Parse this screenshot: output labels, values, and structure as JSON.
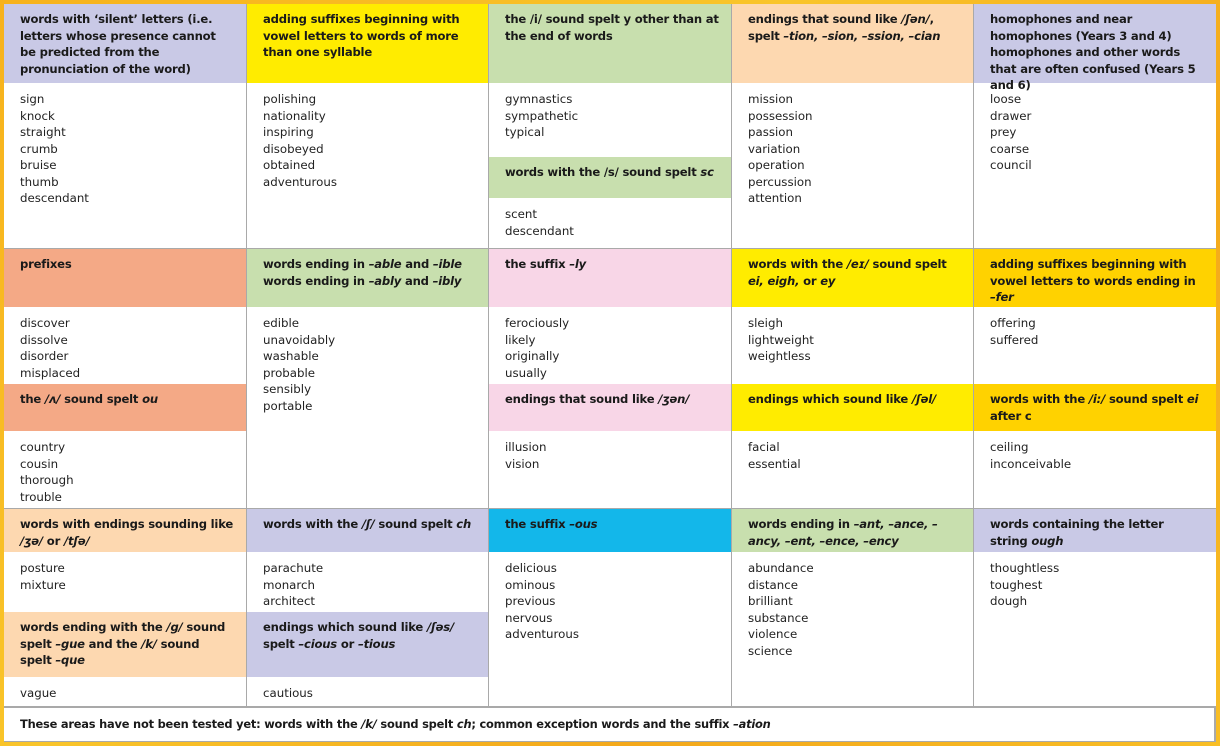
{
  "colors": {
    "lavender": "#c9c9e6",
    "yellow": "#ffec00",
    "green": "#c8dfae",
    "peach": "#fdd8b0",
    "salmon": "#f4a986",
    "pink": "#f8d6e7",
    "cyan": "#13b7ea",
    "gold": "#ffd200",
    "frame": "#f7b21c"
  },
  "rows": [
    [
      [
        {
          "color": "lavender",
          "header": [
            {
              "text": "words with ‘silent’ letters (i.e. letters whose presence cannot be predicted from the pronunciation of the word)"
            }
          ],
          "words": [
            "sign",
            "knock",
            "straight",
            "crumb",
            "bruise",
            "thumb",
            "descendant"
          ]
        }
      ],
      [
        {
          "color": "yellow",
          "header": [
            {
              "text": "adding suffixes beginning with vowel letters to words of more than one syllable"
            }
          ],
          "words": [
            "polishing",
            "nationality",
            "inspiring",
            "disobeyed",
            "obtained",
            "adventurous"
          ]
        }
      ],
      [
        {
          "color": "green",
          "header": [
            {
              "text": "the /i/ sound spelt y other than at the end of words"
            }
          ],
          "words": [
            "gymnastics",
            "sympathetic",
            "typical"
          ]
        },
        {
          "color": "green",
          "header": [
            {
              "text": "words with the /s/ sound spelt "
            },
            {
              "text": "sc",
              "italic": true
            }
          ],
          "words": [
            "scent",
            "descendant"
          ]
        }
      ],
      [
        {
          "color": "peach",
          "header": [
            {
              "text": "endings that sound like "
            },
            {
              "text": "/ʃən/",
              "italic": true
            },
            {
              "text": ", spelt "
            },
            {
              "text": "–tion, –sion, –ssion, –cian",
              "italic": true
            }
          ],
          "words": [
            "mission",
            "possession",
            "passion",
            "variation",
            "operation",
            "percussion",
            "attention"
          ]
        }
      ],
      [
        {
          "color": "lavender",
          "header": [
            {
              "text": "homophones and near homophones (Years 3 and 4) homophones and other words that are often confused (Years 5 and 6)"
            }
          ],
          "words": [
            "loose",
            "drawer",
            "prey",
            "coarse",
            "council"
          ]
        }
      ]
    ],
    [
      [
        {
          "color": "salmon",
          "header": [
            {
              "text": "prefixes"
            }
          ],
          "words": [
            "discover",
            "dissolve",
            "disorder",
            "misplaced"
          ]
        },
        {
          "color": "salmon",
          "header": [
            {
              "text": "the "
            },
            {
              "text": "/ʌ/",
              "italic": true
            },
            {
              "text": " sound spelt "
            },
            {
              "text": "ou",
              "italic": true
            }
          ],
          "words": [
            "country",
            "cousin",
            "thorough",
            "trouble"
          ]
        }
      ],
      [
        {
          "color": "green",
          "header": [
            {
              "text": "words ending in "
            },
            {
              "text": "–able",
              "italic": true
            },
            {
              "text": " and "
            },
            {
              "text": "–ible",
              "italic": true
            },
            {
              "text": " words ending in "
            },
            {
              "text": "–ably",
              "italic": true
            },
            {
              "text": " and "
            },
            {
              "text": "–ibly",
              "italic": true
            }
          ],
          "words": [
            "edible",
            "unavoidably",
            "washable",
            "probable",
            "sensibly",
            "portable"
          ]
        }
      ],
      [
        {
          "color": "pink",
          "header": [
            {
              "text": "the suffix "
            },
            {
              "text": "–ly",
              "italic": true
            }
          ],
          "words": [
            "ferociously",
            "likely",
            "originally",
            "usually"
          ]
        },
        {
          "color": "pink",
          "header": [
            {
              "text": "endings that sound like "
            },
            {
              "text": "/ʒən/",
              "italic": true
            }
          ],
          "words": [
            "illusion",
            "vision"
          ]
        }
      ],
      [
        {
          "color": "yellow",
          "header": [
            {
              "text": "words with the "
            },
            {
              "text": "/eɪ/",
              "italic": true
            },
            {
              "text": " sound spelt "
            },
            {
              "text": "ei, eigh,",
              "italic": true
            },
            {
              "text": " or "
            },
            {
              "text": "ey",
              "italic": true
            }
          ],
          "words": [
            "sleigh",
            "lightweight",
            "weightless"
          ]
        },
        {
          "color": "yellow",
          "header": [
            {
              "text": "endings which sound like "
            },
            {
              "text": "/ʃəl/",
              "italic": true
            }
          ],
          "words": [
            "facial",
            "essential"
          ]
        }
      ],
      [
        {
          "color": "gold",
          "header": [
            {
              "text": "adding suffixes beginning with vowel letters to words ending in "
            },
            {
              "text": "–fer",
              "italic": true
            }
          ],
          "words": [
            "offering",
            "suffered"
          ]
        },
        {
          "color": "gold",
          "header": [
            {
              "text": "words with the "
            },
            {
              "text": "/i:/",
              "italic": true
            },
            {
              "text": " sound spelt "
            },
            {
              "text": "ei",
              "italic": true
            },
            {
              "text": " after c"
            }
          ],
          "words": [
            "ceiling",
            "inconceivable"
          ]
        }
      ]
    ],
    [
      [
        {
          "color": "peach",
          "header": [
            {
              "text": "words with endings sounding like "
            },
            {
              "text": "/ʒə/",
              "italic": true
            },
            {
              "text": " or "
            },
            {
              "text": "/tʃə/",
              "italic": true
            }
          ],
          "words": [
            "posture",
            "mixture"
          ]
        },
        {
          "color": "peach",
          "header": [
            {
              "text": "words ending with the "
            },
            {
              "text": "/g/",
              "italic": true
            },
            {
              "text": " sound spelt "
            },
            {
              "text": "–gue",
              "italic": true
            },
            {
              "text": " and the "
            },
            {
              "text": "/k/",
              "italic": true
            },
            {
              "text": " sound spelt "
            },
            {
              "text": "–que",
              "italic": true
            }
          ],
          "words": [
            "vague"
          ]
        }
      ],
      [
        {
          "color": "lavender",
          "header": [
            {
              "text": "words with the "
            },
            {
              "text": "/ʃ/",
              "italic": true
            },
            {
              "text": " sound spelt "
            },
            {
              "text": "ch",
              "italic": true
            }
          ],
          "words": [
            "parachute",
            "monarch",
            "architect"
          ]
        },
        {
          "color": "lavender",
          "header": [
            {
              "text": "endings which sound like "
            },
            {
              "text": "/ʃəs/",
              "italic": true
            },
            {
              "text": " spelt "
            },
            {
              "text": "–cious",
              "italic": true
            },
            {
              "text": " or "
            },
            {
              "text": "–tious",
              "italic": true
            }
          ],
          "words": [
            "cautious"
          ]
        }
      ],
      [
        {
          "color": "cyan",
          "header": [
            {
              "text": "the suffix "
            },
            {
              "text": "–ous",
              "italic": true
            }
          ],
          "words": [
            "delicious",
            "ominous",
            "previous",
            "nervous",
            "adventurous"
          ]
        }
      ],
      [
        {
          "color": "green",
          "header": [
            {
              "text": "words ending in "
            },
            {
              "text": "–ant, –ance, –ancy, –ent, –ence, –ency",
              "italic": true
            }
          ],
          "words": [
            "abundance",
            "distance",
            "brilliant",
            "substance",
            "violence",
            "science"
          ]
        }
      ],
      [
        {
          "color": "lavender",
          "header": [
            {
              "text": "words containing the letter string "
            },
            {
              "text": "ough",
              "italic": true
            }
          ],
          "words": [
            "thoughtless",
            "toughest",
            "dough"
          ]
        }
      ]
    ]
  ],
  "footer": [
    {
      "text": "These areas have not been tested yet: words with the "
    },
    {
      "text": "/k/",
      "italic": true
    },
    {
      "text": " sound spelt "
    },
    {
      "text": "ch",
      "italic": true
    },
    {
      "text": "; common exception words and the suffix "
    },
    {
      "text": "–ation",
      "italic": true
    }
  ]
}
